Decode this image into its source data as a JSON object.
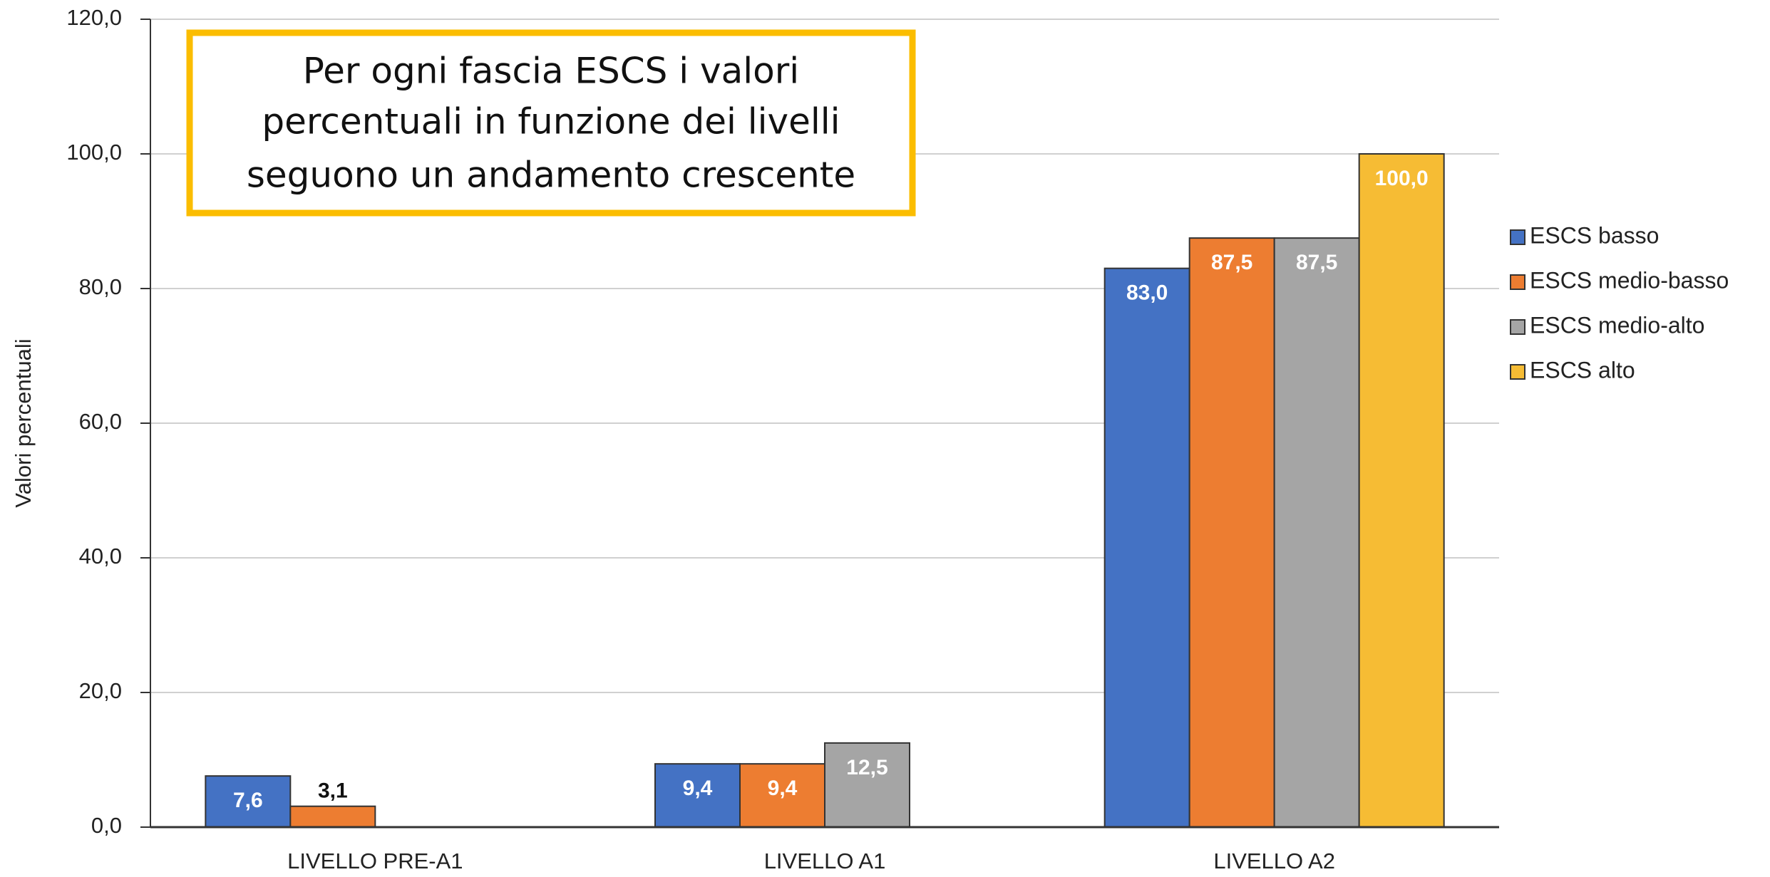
{
  "chart_data": {
    "type": "bar",
    "annotation": [
      "Per ogni fascia ESCS i valori",
      "percentuali in funzione dei livelli",
      "seguono un andamento crescente"
    ],
    "y_label": "Valori percentuali",
    "categories": [
      "LIVELLO PRE-A1",
      "LIVELLO A1",
      "LIVELLO A2"
    ],
    "series": [
      {
        "name": "ESCS basso",
        "color": "#4472c4",
        "values": [
          7.6,
          9.4,
          83.0
        ],
        "value_labels": [
          "7,6",
          "9,4",
          "83,0"
        ]
      },
      {
        "name": "ESCS medio-basso",
        "color": "#ed7d31",
        "values": [
          3.1,
          9.4,
          87.5
        ],
        "value_labels": [
          "3,1",
          "9,4",
          "87,5"
        ]
      },
      {
        "name": "ESCS medio-alto",
        "color": "#a5a5a5",
        "values": [
          null,
          12.5,
          87.5
        ],
        "value_labels": [
          null,
          "12,5",
          "87,5"
        ]
      },
      {
        "name": "ESCS alto",
        "color": "#f6bc34",
        "values": [
          null,
          null,
          100.0
        ],
        "value_labels": [
          null,
          null,
          "100,0"
        ]
      }
    ],
    "ylim": [
      0,
      120
    ],
    "yticks": [
      {
        "value": 0,
        "label": "0,0"
      },
      {
        "value": 20,
        "label": "20,0"
      },
      {
        "value": 40,
        "label": "40,0"
      },
      {
        "value": 60,
        "label": "60,0"
      },
      {
        "value": 80,
        "label": "80,0"
      },
      {
        "value": 100,
        "label": "100,0"
      },
      {
        "value": 120,
        "label": "120,0"
      }
    ],
    "grid": true,
    "legend": "right"
  }
}
